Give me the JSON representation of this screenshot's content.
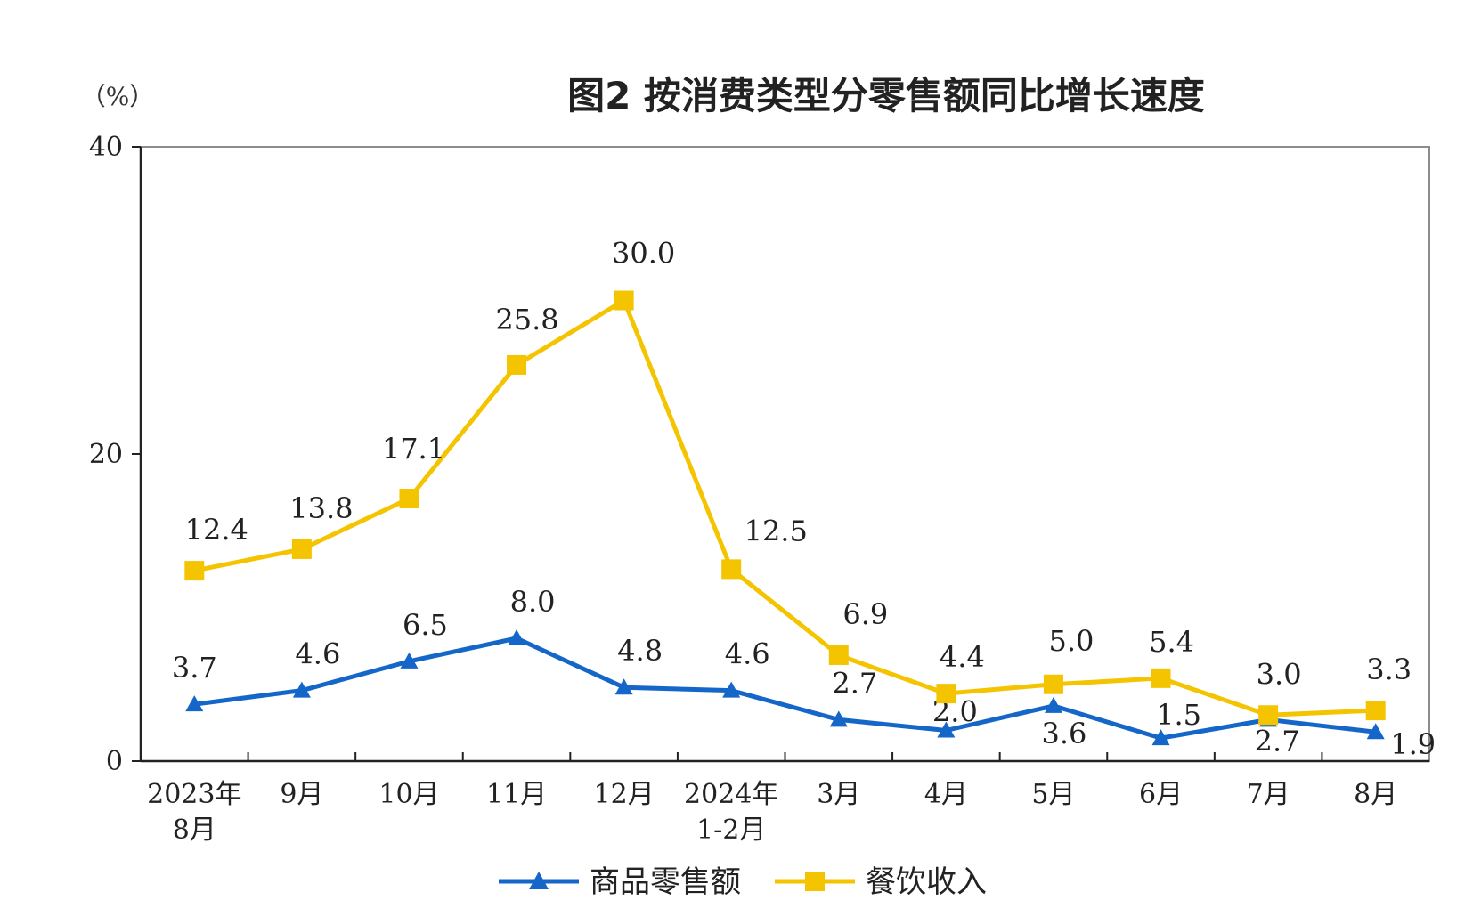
{
  "chart_data": {
    "type": "line",
    "title": "图2  按消费类型分零售额同比增长速度",
    "unit_label": "（%）",
    "ylim": [
      0,
      40
    ],
    "yticks": [
      0,
      20,
      40
    ],
    "categories": [
      [
        "2023年",
        "8月"
      ],
      [
        "9月"
      ],
      [
        "10月"
      ],
      [
        "11月"
      ],
      [
        "12月"
      ],
      [
        "2024年",
        "1-2月"
      ],
      [
        "3月"
      ],
      [
        "4月"
      ],
      [
        "5月"
      ],
      [
        "6月"
      ],
      [
        "7月"
      ],
      [
        "8月"
      ]
    ],
    "series": [
      {
        "name": "商品零售额",
        "color": "#1466c8",
        "marker": "triangle",
        "values": [
          3.7,
          4.6,
          6.5,
          8.0,
          4.8,
          4.6,
          2.7,
          2.0,
          3.6,
          1.5,
          2.7,
          1.9
        ],
        "labels": [
          "3.7",
          "4.6",
          "6.5",
          "8.0",
          "4.8",
          "4.6",
          "2.7",
          "2.0",
          "3.6",
          "1.5",
          "2.7",
          "1.9"
        ]
      },
      {
        "name": "餐饮收入",
        "color": "#f5c400",
        "marker": "square",
        "values": [
          12.4,
          13.8,
          17.1,
          25.8,
          30.0,
          12.5,
          6.9,
          4.4,
          5.0,
          5.4,
          3.0,
          3.3
        ],
        "labels": [
          "12.4",
          "13.8",
          "17.1",
          "25.8",
          "30.0",
          "12.5",
          "6.9",
          "4.4",
          "5.0",
          "5.4",
          "3.0",
          "3.3"
        ]
      }
    ],
    "legend_position": "bottom-center",
    "grid": false
  }
}
